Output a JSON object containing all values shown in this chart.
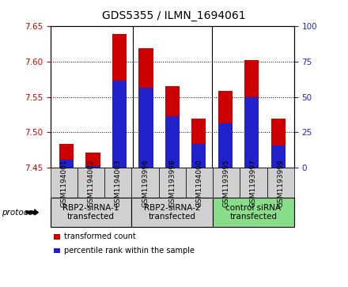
{
  "title": "GDS5355 / ILMN_1694061",
  "samples": [
    "GSM1194001",
    "GSM1194002",
    "GSM1194003",
    "GSM1193996",
    "GSM1193998",
    "GSM1194000",
    "GSM1193995",
    "GSM1193997",
    "GSM1193999"
  ],
  "red_values": [
    7.484,
    7.471,
    7.638,
    7.619,
    7.565,
    7.519,
    7.558,
    7.602,
    7.519
  ],
  "blue_values": [
    7.461,
    7.453,
    7.573,
    7.563,
    7.523,
    7.484,
    7.513,
    7.549,
    7.482
  ],
  "ylim_left": [
    7.45,
    7.65
  ],
  "yticks_left": [
    7.45,
    7.5,
    7.55,
    7.6,
    7.65
  ],
  "ylim_right": [
    0,
    100
  ],
  "yticks_right": [
    0,
    25,
    50,
    75,
    100
  ],
  "bar_bottom": 7.45,
  "groups": [
    {
      "label": "RBP2-siRNA-1\ntransfected",
      "indices": [
        0,
        1,
        2
      ],
      "color": "#d0d0d0"
    },
    {
      "label": "RBP2-siRNA-2\ntransfected",
      "indices": [
        3,
        4,
        5
      ],
      "color": "#d0d0d0"
    },
    {
      "label": "control siRNA\ntransfected",
      "indices": [
        6,
        7,
        8
      ],
      "color": "#88dd88"
    }
  ],
  "red_color": "#cc0000",
  "blue_color": "#2222cc",
  "bar_width": 0.55,
  "protocol_label": "protocol",
  "legend_items": [
    {
      "color": "#cc0000",
      "label": "transformed count"
    },
    {
      "color": "#2222cc",
      "label": "percentile rank within the sample"
    }
  ],
  "left_tick_color": "#cc0000",
  "right_tick_color": "#2222cc",
  "title_fontsize": 10,
  "tick_fontsize": 7.5,
  "group_label_fontsize": 7.5,
  "sample_fontsize": 6.5,
  "sample_box_color": "#d0d0d0"
}
